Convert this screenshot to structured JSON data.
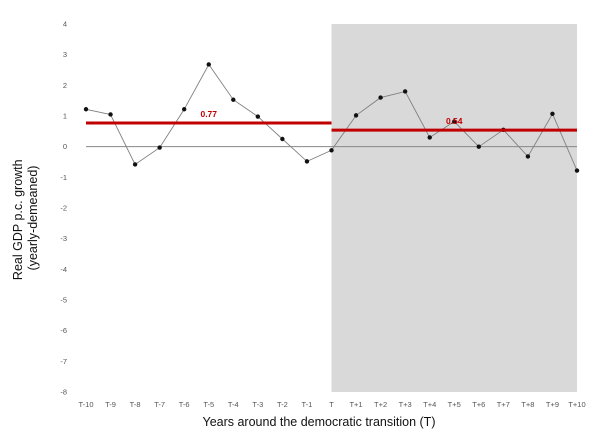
{
  "chart_data": {
    "type": "line",
    "title": "",
    "xlabel": "Years around the democratic transition (T)",
    "ylabel_lines": [
      "Real GDP p.c. growth",
      "(yearly-demeaned)"
    ],
    "categories": [
      "T-10",
      "T-9",
      "T-8",
      "T-7",
      "T-6",
      "T-5",
      "T-4",
      "T-3",
      "T-2",
      "T-1",
      "T",
      "T+1",
      "T+2",
      "T+3",
      "T+4",
      "T+5",
      "T+6",
      "T+7",
      "T+8",
      "T+9",
      "T+10"
    ],
    "ylim": [
      -8,
      4
    ],
    "yticks": [
      "4",
      "3",
      "2",
      "1",
      "0",
      "-1",
      "-2",
      "-3",
      "-4",
      "-5",
      "-6",
      "-7",
      "-8"
    ],
    "series": [
      {
        "values": [
          1.22,
          1.05,
          -0.58,
          -0.03,
          1.22,
          2.68,
          1.53,
          0.98,
          0.25,
          -0.48,
          -0.12,
          1.02,
          1.6,
          1.8,
          0.3,
          0.82,
          0.0,
          0.55,
          -0.32,
          1.07,
          -0.78
        ]
      }
    ],
    "averages": [
      {
        "from": "T-10",
        "to": "T",
        "value": 0.77,
        "label": "0.77"
      },
      {
        "from": "T",
        "to": "T+10",
        "value": 0.54,
        "label": "0.54"
      }
    ],
    "shaded_region": {
      "from": "T",
      "to": "T+10"
    },
    "colors": {
      "line": "#808080",
      "marker": "#111111",
      "average": "#c00000",
      "shade": "#d9d9d9",
      "zero_line": "#888888"
    }
  }
}
